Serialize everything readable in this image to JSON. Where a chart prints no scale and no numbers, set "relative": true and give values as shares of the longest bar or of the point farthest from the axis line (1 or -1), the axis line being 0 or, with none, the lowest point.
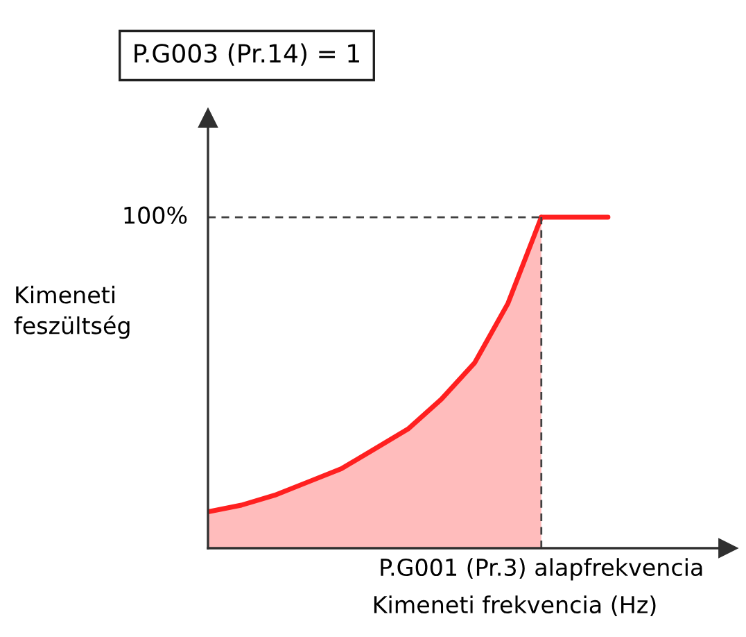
{
  "chart_data": {
    "type": "area",
    "title": "P.G003 (Pr.14) = 1",
    "xlabel": "Kimeneti frekvencia (Hz)",
    "ylabel": "Kimeneti feszültség",
    "relative": true,
    "categories": [
      null,
      null,
      null,
      null,
      null,
      null,
      null,
      null,
      null,
      null,
      null,
      null,
      null
    ],
    "series": [
      {
        "color": "#ff2020",
        "values": [
          0.11,
          0.13,
          0.16,
          0.2,
          0.24,
          0.3,
          0.36,
          0.45,
          0.56,
          0.74,
          1.0,
          null,
          null
        ]
      },
      {
        "type": "line",
        "color": "#ff2020",
        "values": [
          null,
          null,
          null,
          null,
          null,
          null,
          null,
          null,
          null,
          null,
          1.0,
          1.0,
          1.0
        ]
      }
    ],
    "ref_lines": [
      {
        "axis": "y",
        "value": 1.0,
        "label": "100%",
        "color": "#404040",
        "line_style": "dashed"
      }
    ],
    "annotations": [
      "P.G001 (Pr.3) alapfrekvencia"
    ],
    "legend": false,
    "grid": false
  }
}
